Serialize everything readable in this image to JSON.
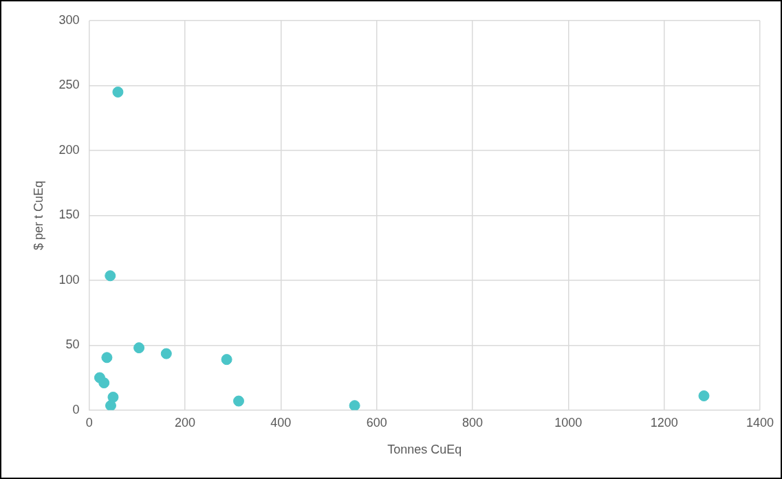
{
  "chart_data": {
    "type": "scatter",
    "xlabel": "Tonnes CuEq",
    "ylabel": "$ per t CuEq",
    "x": [
      60,
      44,
      37,
      104,
      161,
      287,
      22,
      31,
      50,
      45,
      312,
      554,
      1283
    ],
    "values": [
      245,
      103.5,
      40.5,
      48,
      43.5,
      39,
      25,
      21,
      10,
      3.5,
      7,
      3.5,
      11
    ],
    "color": "#4bc5c8",
    "marker": "circle",
    "grid": true,
    "xlim": [
      0,
      1400
    ],
    "xticks": [
      0,
      200,
      400,
      600,
      800,
      1000,
      1200,
      1400
    ],
    "ylim": [
      0,
      300
    ],
    "yticks": [
      0,
      50,
      100,
      150,
      200,
      250,
      300
    ]
  }
}
